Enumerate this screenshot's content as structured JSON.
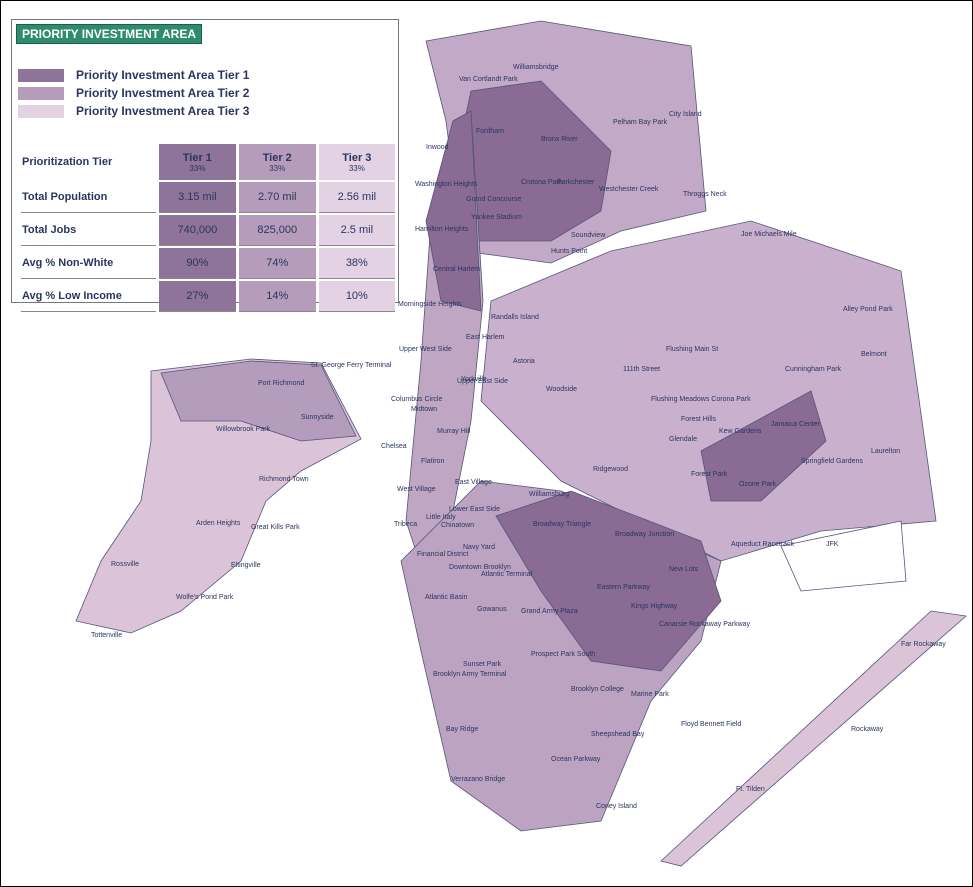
{
  "legend": {
    "title": "PRIORITY INVESTMENT AREA",
    "items": [
      "Priority Investment Area Tier 1",
      "Priority Investment Area Tier 2",
      "Priority Investment Area Tier 3"
    ]
  },
  "table": {
    "header": [
      "Prioritization Tier",
      "Tier 1",
      "Tier 2",
      "Tier 3"
    ],
    "subheader": [
      "33%",
      "33%",
      "33%"
    ],
    "rows": [
      [
        "Total Population",
        "3.15 mil",
        "2.70 mil",
        "2.56 mil"
      ],
      [
        "Total Jobs",
        "740,000",
        "825,000",
        "2.5 mil"
      ],
      [
        "Avg % Non-White",
        "90%",
        "74%",
        "38%"
      ],
      [
        "Avg % Low Income",
        "27%",
        "14%",
        "10%"
      ]
    ]
  },
  "map_labels": [
    "Van Cortlandt Park",
    "Williamsbridge",
    "Fordham",
    "Bronx River",
    "Pelham Bay Park",
    "City Island",
    "Inwood",
    "Crotona Park",
    "Parkchester",
    "Westchester Creek",
    "Throggs Neck",
    "Washington Heights",
    "Grand Concourse",
    "Yankee Stadium",
    "Soundview",
    "Hunts Point",
    "Hamilton Heights",
    "Central Harlem",
    "Morningside Heights",
    "East Harlem",
    "Randalls Island",
    "Upper West Side",
    "Yorkville",
    "Astoria",
    "Columbus Circle",
    "Upper East Side",
    "Midtown",
    "Murray Hill",
    "Woodside",
    "111th Street",
    "Flushing Main St",
    "Flushing Meadows Corona Park",
    "Forest Hills",
    "Kew Gardens",
    "Jamaica Center",
    "Glendale",
    "Ridgewood",
    "Forest Park",
    "Ozone Park",
    "Springfield Gardens",
    "Laurelton",
    "Chelsea",
    "Flatiron",
    "West Village",
    "East Village",
    "Lower East Side",
    "Tribeca",
    "Little Italy",
    "Chinatown",
    "Financial District",
    "Williamsburg",
    "Broadway Triangle",
    "Navy Yard",
    "Downtown Brooklyn",
    "Atlantic Terminal",
    "Broadway Junction",
    "New Lots",
    "Eastern Parkway",
    "Atlantic Basin",
    "Gowanus",
    "Grand Army Plaza",
    "Kings Highway",
    "Canarsie Rockaway Parkway",
    "Prospect Park South",
    "Brooklyn Army Terminal",
    "Sunset Park",
    "Brooklyn College",
    "Marine Park",
    "Bay Ridge",
    "Sheepshead Bay",
    "Floyd Bennett Field",
    "Ocean Parkway",
    "Verrazano Bridge",
    "Coney Island",
    "Ft. Tilden",
    "Rockaway",
    "Far Rockaway",
    "JFK",
    "Aqueduct Racetrack",
    "Cunningham Park",
    "Alley Pond Park",
    "Belmont",
    "Joe Michaels Mile",
    "St. George Ferry Terminal",
    "Port Richmond",
    "Sunnyside",
    "Willowbrook Park",
    "Richmond Town",
    "Arden Heights",
    "Rossville",
    "Great Kills Park",
    "Eltingville",
    "Wolfe's Pond Park",
    "Tottenville"
  ]
}
